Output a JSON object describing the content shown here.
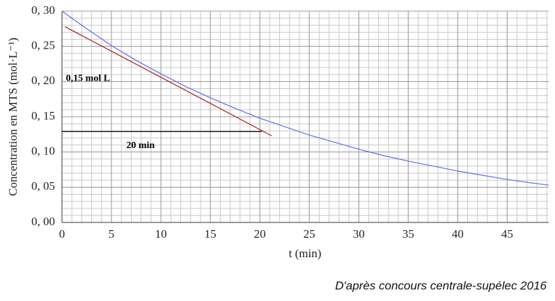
{
  "chart_data": {
    "type": "line",
    "xlabel": "t (min)",
    "ylabel": "Concentration en MTS (mol·L⁻¹)",
    "xlim": [
      0,
      49.2
    ],
    "ylim": [
      0,
      0.3
    ],
    "xticks": [
      0,
      5,
      10,
      15,
      20,
      25,
      30,
      35,
      40,
      45
    ],
    "yticks": [
      {
        "value": 0,
        "label": "0, 00"
      },
      {
        "value": 0.05,
        "label": "0, 05"
      },
      {
        "value": 0.1,
        "label": "0, 10"
      },
      {
        "value": 0.15,
        "label": "0, 15"
      },
      {
        "value": 0.2,
        "label": "0, 20"
      },
      {
        "value": 0.25,
        "label": "0, 25"
      },
      {
        "value": 0.3,
        "label": "0, 30"
      }
    ],
    "grid": true,
    "x_minor_step": 1,
    "y_minor_step": 0.01,
    "series": [
      {
        "color": "#5b6ef0",
        "x": [
          0,
          2.5,
          5,
          7.5,
          10,
          12.5,
          15,
          17.5,
          20,
          22.5,
          25,
          27.5,
          30,
          32.5,
          35,
          37.5,
          40,
          42.5,
          45,
          47.5,
          49.2
        ],
        "values": [
          0.3,
          0.275,
          0.251,
          0.23,
          0.211,
          0.193,
          0.177,
          0.162,
          0.148,
          0.136,
          0.124,
          0.114,
          0.104,
          0.095,
          0.087,
          0.08,
          0.073,
          0.067,
          0.061,
          0.056,
          0.053
        ]
      },
      {
        "color": "#b01818",
        "x": [
          0.3,
          21.2
        ],
        "values": [
          0.278,
          0.123
        ]
      },
      {
        "color": "#000000",
        "x": [
          0,
          20.2
        ],
        "values": [
          0.129,
          0.129
        ]
      }
    ],
    "annotations": [
      {
        "text": "0,15 mol L",
        "x": 0.4,
        "y": 0.204
      },
      {
        "text": "20 min",
        "x": 6.5,
        "y": 0.109
      }
    ],
    "source": "D'après concours centrale-supélec 2016"
  }
}
